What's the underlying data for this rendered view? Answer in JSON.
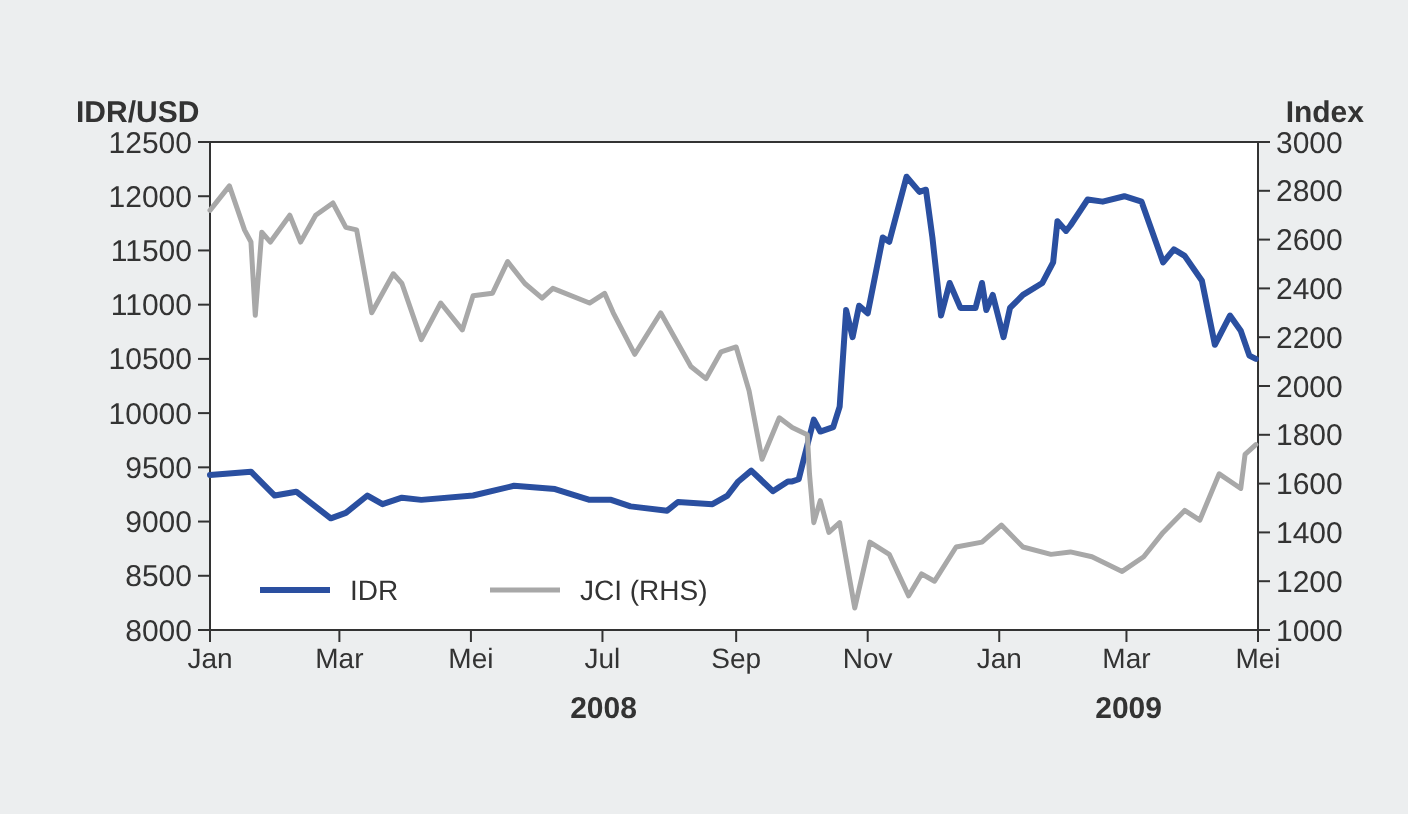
{
  "chart_data": {
    "type": "line",
    "ylabel": "IDR/USD",
    "y2label": "Index",
    "xlim": [
      "2008-01-01",
      "2009-05-01"
    ],
    "xticks": [
      {
        "value": "2008-01-01",
        "label": "Jan"
      },
      {
        "value": "2008-03-01",
        "label": "Mar"
      },
      {
        "value": "2008-05-01",
        "label": "Mei"
      },
      {
        "value": "2008-07-01",
        "label": "Jul"
      },
      {
        "value": "2008-09-01",
        "label": "Sep"
      },
      {
        "value": "2008-11-01",
        "label": "Nov"
      },
      {
        "value": "2009-01-01",
        "label": "Jan"
      },
      {
        "value": "2009-03-01",
        "label": "Mar"
      },
      {
        "value": "2009-05-01",
        "label": "Mei"
      }
    ],
    "ylim": [
      8000,
      12500
    ],
    "yticks": [
      8000,
      8500,
      9000,
      9500,
      10000,
      10500,
      11000,
      11500,
      12000,
      12500
    ],
    "y2lim": [
      1000,
      3000
    ],
    "y2ticks": [
      1000,
      1200,
      1400,
      1600,
      1800,
      2000,
      2200,
      2400,
      2600,
      2800,
      3000
    ],
    "legend": "bottom left",
    "grid": false,
    "marker": "none",
    "annotations": [
      "2008",
      "2009"
    ],
    "series": [
      {
        "name": "IDR",
        "color": "#2a4fa0",
        "x": [
          "2008-01-01",
          "2008-01-20",
          "2008-01-31",
          "2008-02-10",
          "2008-02-26",
          "2008-03-04",
          "2008-03-14",
          "2008-03-21",
          "2008-03-30",
          "2008-04-08",
          "2008-05-02",
          "2008-05-21",
          "2008-06-09",
          "2008-06-25",
          "2008-07-05",
          "2008-07-14",
          "2008-07-31",
          "2008-08-05",
          "2008-08-21",
          "2008-08-28",
          "2008-09-02",
          "2008-09-08",
          "2008-09-18",
          "2008-09-25",
          "2008-09-27",
          "2008-09-30",
          "2008-10-07",
          "2008-10-10",
          "2008-10-16",
          "2008-10-19",
          "2008-10-22",
          "2008-10-25",
          "2008-10-28",
          "2008-11-01",
          "2008-11-08",
          "2008-11-11",
          "2008-11-19",
          "2008-11-25",
          "2008-11-28",
          "2008-12-01",
          "2008-12-05",
          "2008-12-09",
          "2008-12-14",
          "2008-12-21",
          "2008-12-24",
          "2008-12-26",
          "2008-12-29",
          "2009-01-03",
          "2009-01-06",
          "2009-01-12",
          "2009-01-21",
          "2009-01-26",
          "2009-01-28",
          "2009-02-01",
          "2009-02-03",
          "2009-02-11",
          "2009-02-18",
          "2009-02-28",
          "2009-03-08",
          "2009-03-18",
          "2009-03-23",
          "2009-03-28",
          "2009-04-05",
          "2009-04-11",
          "2009-04-18",
          "2009-04-23",
          "2009-04-27",
          "2009-04-30"
        ],
        "values": [
          9430,
          9460,
          9240,
          9275,
          9030,
          9080,
          9240,
          9160,
          9220,
          9200,
          9240,
          9330,
          9300,
          9200,
          9200,
          9140,
          9100,
          9180,
          9160,
          9240,
          9370,
          9470,
          9280,
          9370,
          9370,
          9390,
          9940,
          9830,
          9870,
          10060,
          10950,
          10700,
          10990,
          10920,
          11620,
          11580,
          12180,
          12040,
          12060,
          11620,
          10900,
          11200,
          10970,
          10970,
          11200,
          10950,
          11090,
          10700,
          10970,
          11090,
          11200,
          11390,
          11770,
          11680,
          11730,
          11970,
          11950,
          12000,
          11950,
          11390,
          11510,
          11450,
          11220,
          10630,
          10900,
          10760,
          10530,
          10500
        ]
      },
      {
        "name": "JCI (RHS)",
        "color": "#a8a8a8",
        "axis": "y2",
        "x": [
          "2008-01-01",
          "2008-01-10",
          "2008-01-17",
          "2008-01-20",
          "2008-01-22",
          "2008-01-25",
          "2008-01-29",
          "2008-02-07",
          "2008-02-12",
          "2008-02-19",
          "2008-02-27",
          "2008-03-04",
          "2008-03-09",
          "2008-03-16",
          "2008-03-26",
          "2008-03-30",
          "2008-04-08",
          "2008-04-17",
          "2008-04-27",
          "2008-05-02",
          "2008-05-11",
          "2008-05-18",
          "2008-05-26",
          "2008-06-03",
          "2008-06-08",
          "2008-06-25",
          "2008-07-02",
          "2008-07-06",
          "2008-07-16",
          "2008-07-28",
          "2008-08-11",
          "2008-08-18",
          "2008-08-25",
          "2008-09-01",
          "2008-09-07",
          "2008-09-13",
          "2008-09-21",
          "2008-09-27",
          "2008-10-04",
          "2008-10-05",
          "2008-10-07",
          "2008-10-10",
          "2008-10-14",
          "2008-10-19",
          "2008-10-26",
          "2008-11-02",
          "2008-11-11",
          "2008-11-20",
          "2008-11-26",
          "2008-12-02",
          "2008-12-12",
          "2008-12-24",
          "2009-01-02",
          "2009-01-12",
          "2009-01-25",
          "2009-02-03",
          "2009-02-13",
          "2009-02-27",
          "2009-03-09",
          "2009-03-18",
          "2009-03-28",
          "2009-04-04",
          "2009-04-13",
          "2009-04-23",
          "2009-04-25",
          "2009-04-30"
        ],
        "values": [
          2720,
          2820,
          2640,
          2590,
          2290,
          2630,
          2590,
          2700,
          2590,
          2700,
          2750,
          2650,
          2640,
          2300,
          2460,
          2420,
          2190,
          2340,
          2230,
          2370,
          2380,
          2510,
          2420,
          2360,
          2400,
          2340,
          2380,
          2300,
          2130,
          2300,
          2080,
          2030,
          2140,
          2160,
          1980,
          1700,
          1870,
          1830,
          1800,
          1640,
          1440,
          1530,
          1400,
          1440,
          1090,
          1360,
          1310,
          1140,
          1230,
          1200,
          1340,
          1360,
          1430,
          1340,
          1310,
          1320,
          1300,
          1240,
          1300,
          1400,
          1490,
          1450,
          1640,
          1580,
          1720,
          1760
        ]
      }
    ]
  }
}
